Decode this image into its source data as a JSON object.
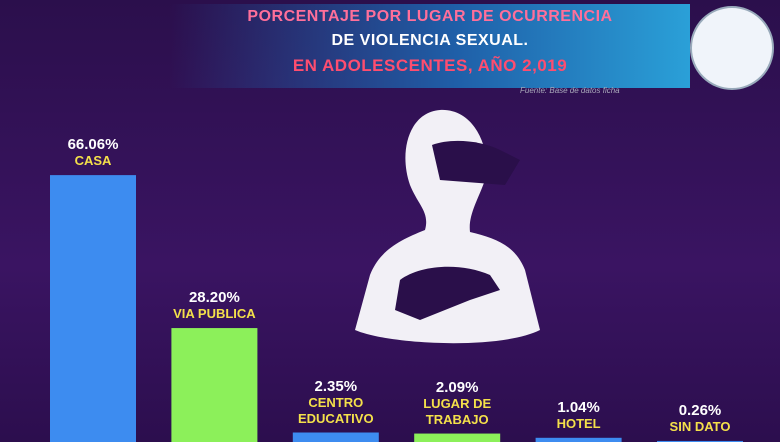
{
  "chart_data": {
    "type": "bar",
    "title": [
      "PORCENTAJE POR LUGAR DE OCURRENCIA",
      "DE VIOLENCIA SEXUAL.",
      "EN ADOLESCENTES, AÑO 2,019"
    ],
    "source": "Fuente: Base de datos ficha",
    "categories": [
      "CASA",
      "VIA PUBLICA",
      "CENTRO EDUCATIVO",
      "LUGAR DE TRABAJO",
      "HOTEL",
      "SIN DATO"
    ],
    "values": [
      66.06,
      28.2,
      2.35,
      2.09,
      1.04,
      0.26
    ],
    "value_labels": [
      "66.06%",
      "28.20%",
      "2.35%",
      "2.09%",
      "1.04%",
      "0.26%"
    ],
    "colors": [
      "#3d8cf0",
      "#8cf05a",
      "#3d8cf0",
      "#8cf05a",
      "#3d8cf0",
      "#3d8cf0"
    ]
  }
}
